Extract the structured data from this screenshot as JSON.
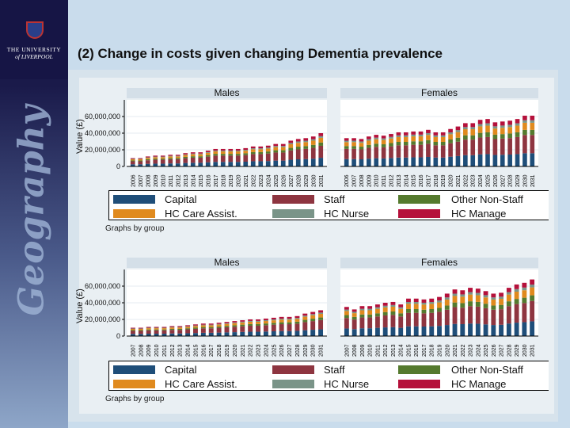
{
  "logo": {
    "line1": "THE UNIVERSITY",
    "line2": "of LIVERPOOL"
  },
  "sidebar_text": "Geography",
  "title": "(2) Change in costs given changing Dementia prevalence",
  "footnote": "Graphs by group",
  "legend": [
    {
      "name": "Capital",
      "color": "#1f4e79"
    },
    {
      "name": "Staff",
      "color": "#8e3540"
    },
    {
      "name": "Other Non-Staff",
      "color": "#557a2e"
    },
    {
      "name": "HC Care Assist.",
      "color": "#e08a1e"
    },
    {
      "name": "HC Nurse",
      "color": "#7a9488"
    },
    {
      "name": "HC Manage",
      "color": "#b5103a"
    }
  ],
  "chart_data": [
    {
      "type": "bar",
      "stacked": true,
      "title": "Males",
      "ylabel": "Value (£)",
      "ylim": [
        0,
        80000000
      ],
      "yticks": [
        "0",
        "20,000,000",
        "40,000,000",
        "60,000,000"
      ],
      "categories": [
        "2006",
        "2007",
        "2008",
        "2009",
        "2010",
        "2011",
        "2012",
        "2013",
        "2014",
        "2015",
        "2016",
        "2017",
        "2018",
        "2019",
        "2020",
        "2021",
        "2022",
        "2023",
        "2024",
        "2025",
        "2026",
        "2027",
        "2028",
        "2029",
        "2030",
        "2031"
      ],
      "totals_millions": [
        10,
        10,
        12,
        13,
        13,
        14,
        14,
        16,
        17,
        17,
        19,
        21,
        21,
        21,
        21,
        22,
        24,
        24,
        25,
        27,
        27,
        31,
        33,
        34,
        36,
        40
      ],
      "series_shares": {
        "Capital": 0.26,
        "Staff": 0.36,
        "Other Non-Staff": 0.1,
        "HC Care Assist.": 0.14,
        "HC Nurse": 0.05,
        "HC Manage": 0.09
      }
    },
    {
      "type": "bar",
      "stacked": true,
      "title": "Females",
      "ylim": [
        0,
        80000000
      ],
      "categories": [
        "2006",
        "2007",
        "2008",
        "2009",
        "2010",
        "2011",
        "2012",
        "2013",
        "2014",
        "2015",
        "2016",
        "2017",
        "2018",
        "2019",
        "2020",
        "2021",
        "2022",
        "2023",
        "2024",
        "2025",
        "2026",
        "2027",
        "2028",
        "2029",
        "2030",
        "2031"
      ],
      "totals_millions": [
        34,
        34,
        33,
        36,
        38,
        37,
        39,
        41,
        41,
        42,
        42,
        44,
        41,
        41,
        45,
        48,
        52,
        52,
        56,
        57,
        53,
        54,
        55,
        57,
        61,
        61
      ],
      "series_shares": {
        "Capital": 0.26,
        "Staff": 0.36,
        "Other Non-Staff": 0.1,
        "HC Care Assist.": 0.14,
        "HC Nurse": 0.05,
        "HC Manage": 0.09
      }
    },
    {
      "type": "bar",
      "stacked": true,
      "title": "Males",
      "ylabel": "Value (£)",
      "ylim": [
        0,
        80000000
      ],
      "yticks": [
        "0",
        "20,000,000",
        "40,000,000",
        "60,000,000"
      ],
      "categories": [
        "2007",
        "2008",
        "2009",
        "2010",
        "2011",
        "2012",
        "2013",
        "2014",
        "2015",
        "2016",
        "2017",
        "2018",
        "2019",
        "2020",
        "2021",
        "2022",
        "2023",
        "2024",
        "2025",
        "2026",
        "2027",
        "2028",
        "2029",
        "2030",
        "2031"
      ],
      "totals_millions": [
        10,
        10,
        11,
        11,
        11,
        12,
        12,
        13,
        14,
        15,
        15,
        16,
        17,
        18,
        19,
        20,
        20,
        21,
        22,
        23,
        23,
        24,
        27,
        29,
        31
      ],
      "series_shares": {
        "Capital": 0.26,
        "Staff": 0.36,
        "Other Non-Staff": 0.1,
        "HC Care Assist.": 0.14,
        "HC Nurse": 0.05,
        "HC Manage": 0.09
      }
    },
    {
      "type": "bar",
      "stacked": true,
      "title": "Females",
      "ylim": [
        0,
        80000000
      ],
      "categories": [
        "2007",
        "2008",
        "2009",
        "2010",
        "2011",
        "2012",
        "2013",
        "2014",
        "2015",
        "2016",
        "2017",
        "2018",
        "2019",
        "2020",
        "2021",
        "2022",
        "2023",
        "2024",
        "2025",
        "2026",
        "2027",
        "2028",
        "2029",
        "2030",
        "2031"
      ],
      "totals_millions": [
        35,
        32,
        36,
        36,
        38,
        40,
        41,
        38,
        45,
        45,
        44,
        45,
        47,
        51,
        56,
        55,
        58,
        57,
        54,
        51,
        52,
        58,
        62,
        64,
        68
      ],
      "series_shares": {
        "Capital": 0.26,
        "Staff": 0.36,
        "Other Non-Staff": 0.1,
        "HC Care Assist.": 0.14,
        "HC Nurse": 0.05,
        "HC Manage": 0.09
      }
    }
  ]
}
